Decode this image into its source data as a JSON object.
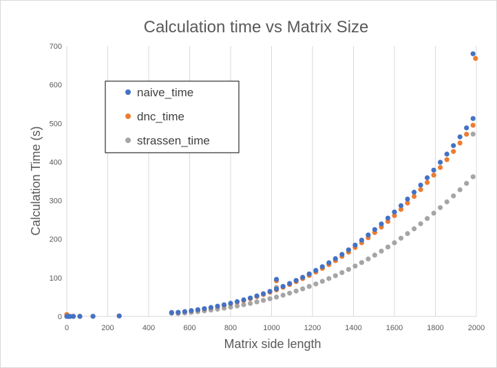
{
  "chart_data": {
    "type": "scatter",
    "title": "Calculation time vs Matrix Size",
    "xlabel": "Matrix side length",
    "ylabel": "Calculation Time (s)",
    "xlim": [
      0,
      2000
    ],
    "ylim": [
      0,
      700
    ],
    "xticks": [
      0,
      200,
      400,
      600,
      800,
      1000,
      1200,
      1400,
      1600,
      1800,
      2000
    ],
    "yticks": [
      0,
      100,
      200,
      300,
      400,
      500,
      600,
      700
    ],
    "grid": "vertical",
    "legend_position": "upper-left",
    "series": [
      {
        "name": "naive_time",
        "color": "#4472C4",
        "points": [
          [
            0,
            0
          ],
          [
            8,
            0
          ],
          [
            16,
            0
          ],
          [
            32,
            0.1
          ],
          [
            64,
            0.2
          ],
          [
            128,
            0.4
          ],
          [
            256,
            1.2
          ],
          [
            512,
            10
          ],
          [
            544,
            10.5
          ],
          [
            576,
            12.5
          ],
          [
            608,
            14.9
          ],
          [
            640,
            17.4
          ],
          [
            672,
            20.1
          ],
          [
            704,
            23.2
          ],
          [
            736,
            26.5
          ],
          [
            768,
            30.1
          ],
          [
            800,
            34
          ],
          [
            832,
            38.3
          ],
          [
            864,
            42.9
          ],
          [
            896,
            47.8
          ],
          [
            928,
            53.1
          ],
          [
            960,
            58.8
          ],
          [
            992,
            64.9
          ],
          [
            1024,
            96
          ],
          [
            1024,
            71
          ],
          [
            1056,
            77.9
          ],
          [
            1088,
            85.3
          ],
          [
            1120,
            93.1
          ],
          [
            1152,
            101.3
          ],
          [
            1184,
            110
          ],
          [
            1216,
            119.2
          ],
          [
            1248,
            128.8
          ],
          [
            1280,
            138.9
          ],
          [
            1312,
            149.6
          ],
          [
            1344,
            160.7
          ],
          [
            1376,
            172.5
          ],
          [
            1408,
            184.7
          ],
          [
            1440,
            197.5
          ],
          [
            1472,
            210.9
          ],
          [
            1504,
            224.9
          ],
          [
            1536,
            239.4
          ],
          [
            1568,
            254.6
          ],
          [
            1600,
            270.4
          ],
          [
            1632,
            286.8
          ],
          [
            1664,
            303.9
          ],
          [
            1696,
            321.6
          ],
          [
            1728,
            340
          ],
          [
            1760,
            359
          ],
          [
            1792,
            378.8
          ],
          [
            1824,
            399.2
          ],
          [
            1856,
            420.4
          ],
          [
            1888,
            442.3
          ],
          [
            1920,
            464.9
          ],
          [
            1952,
            488.3
          ],
          [
            1984,
            512.4
          ],
          [
            1984,
            680
          ]
        ]
      },
      {
        "name": "dnc_time",
        "color": "#ED7D31",
        "points": [
          [
            0,
            5
          ],
          [
            8,
            0
          ],
          [
            16,
            0
          ],
          [
            32,
            0.1
          ],
          [
            64,
            0.2
          ],
          [
            128,
            0.4
          ],
          [
            256,
            1.2
          ],
          [
            512,
            10
          ],
          [
            544,
            10.3
          ],
          [
            576,
            12.2
          ],
          [
            608,
            14.4
          ],
          [
            640,
            16.8
          ],
          [
            672,
            19.5
          ],
          [
            704,
            22.4
          ],
          [
            736,
            25.6
          ],
          [
            768,
            29.1
          ],
          [
            800,
            32.9
          ],
          [
            832,
            37
          ],
          [
            864,
            41.4
          ],
          [
            896,
            46.2
          ],
          [
            928,
            51.3
          ],
          [
            960,
            56.8
          ],
          [
            992,
            62.7
          ],
          [
            1024,
            92
          ],
          [
            1024,
            68.6
          ],
          [
            1056,
            75.3
          ],
          [
            1088,
            82.4
          ],
          [
            1120,
            89.9
          ],
          [
            1152,
            97.8
          ],
          [
            1184,
            106.2
          ],
          [
            1216,
            115.1
          ],
          [
            1248,
            124.4
          ],
          [
            1280,
            134.2
          ],
          [
            1312,
            144.5
          ],
          [
            1344,
            155.3
          ],
          [
            1376,
            166.6
          ],
          [
            1408,
            178.4
          ],
          [
            1440,
            190.8
          ],
          [
            1472,
            203.7
          ],
          [
            1504,
            217.2
          ],
          [
            1536,
            231.3
          ],
          [
            1568,
            246
          ],
          [
            1600,
            261.2
          ],
          [
            1632,
            277.1
          ],
          [
            1664,
            293.6
          ],
          [
            1696,
            310.7
          ],
          [
            1728,
            328.4
          ],
          [
            1760,
            346.8
          ],
          [
            1792,
            365.8
          ],
          [
            1824,
            385.6
          ],
          [
            1856,
            406
          ],
          [
            1888,
            427.2
          ],
          [
            1920,
            449
          ],
          [
            1952,
            471.6
          ],
          [
            1984,
            495
          ],
          [
            1996,
            668
          ]
        ]
      },
      {
        "name": "strassen_time",
        "color": "#A5A5A5",
        "points": [
          [
            0,
            0
          ],
          [
            8,
            0
          ],
          [
            16,
            0
          ],
          [
            32,
            0.1
          ],
          [
            64,
            0.2
          ],
          [
            128,
            0.4
          ],
          [
            256,
            1.2
          ],
          [
            512,
            8
          ],
          [
            544,
            7.5
          ],
          [
            576,
            8.9
          ],
          [
            608,
            10.5
          ],
          [
            640,
            12.3
          ],
          [
            672,
            14.2
          ],
          [
            704,
            16.4
          ],
          [
            736,
            18.7
          ],
          [
            768,
            21.3
          ],
          [
            800,
            24
          ],
          [
            832,
            27
          ],
          [
            864,
            30.2
          ],
          [
            896,
            33.7
          ],
          [
            928,
            37.5
          ],
          [
            960,
            41.5
          ],
          [
            992,
            45.8
          ],
          [
            1024,
            75
          ],
          [
            1024,
            50.1
          ],
          [
            1056,
            55
          ],
          [
            1088,
            60.2
          ],
          [
            1120,
            65.7
          ],
          [
            1152,
            71.5
          ],
          [
            1184,
            77.6
          ],
          [
            1216,
            84.1
          ],
          [
            1248,
            90.9
          ],
          [
            1280,
            98
          ],
          [
            1312,
            105.5
          ],
          [
            1344,
            113.4
          ],
          [
            1376,
            121.7
          ],
          [
            1408,
            130.3
          ],
          [
            1440,
            139.4
          ],
          [
            1472,
            148.8
          ],
          [
            1504,
            158.7
          ],
          [
            1536,
            169
          ],
          [
            1568,
            179.7
          ],
          [
            1600,
            190.8
          ],
          [
            1632,
            202.5
          ],
          [
            1664,
            214.5
          ],
          [
            1696,
            227
          ],
          [
            1728,
            240
          ],
          [
            1760,
            253.4
          ],
          [
            1792,
            267.3
          ],
          [
            1824,
            281.7
          ],
          [
            1856,
            296.6
          ],
          [
            1888,
            312.1
          ],
          [
            1920,
            328
          ],
          [
            1952,
            344.5
          ],
          [
            1984,
            361.6
          ],
          [
            1984,
            472
          ]
        ]
      }
    ]
  }
}
